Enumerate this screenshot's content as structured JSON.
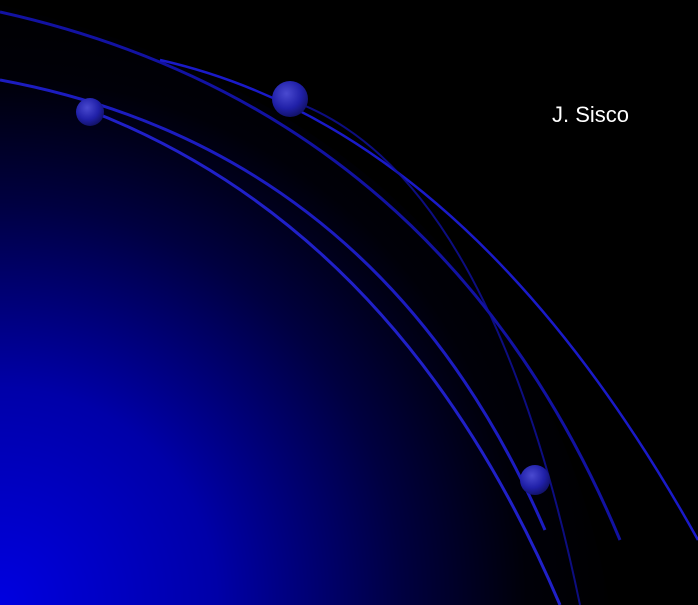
{
  "slide": {
    "author_text": "J. Sisco"
  },
  "colors": {
    "background": "#000000",
    "gradient_blue": "#0000d8",
    "arc_blue": "#1a1ac8",
    "orb_blue": "#2a2ab8"
  },
  "decorations": {
    "arcs": [
      "arc-curve",
      "arc-curve",
      "arc-curve"
    ],
    "orbs": [
      "orb",
      "orb",
      "orb"
    ],
    "divider": "divider-line"
  }
}
